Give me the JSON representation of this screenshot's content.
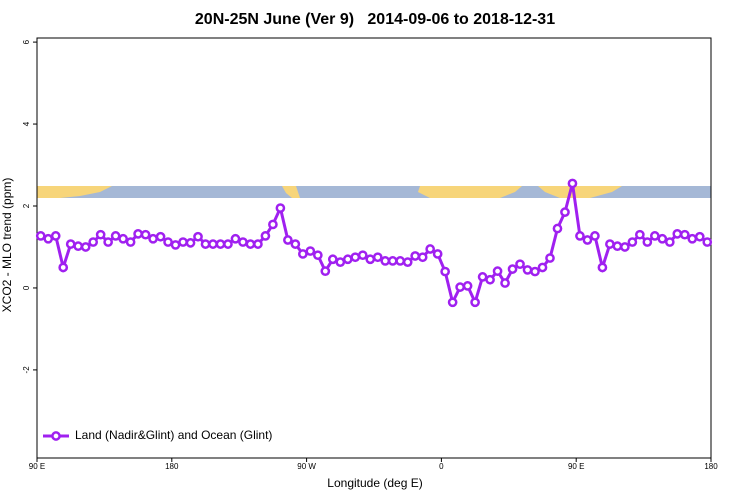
{
  "chart_data": {
    "type": "line",
    "title": "20N-25N June (Ver 9)   2014-09-06 to 2018-12-31",
    "x_label": "Longitude (deg E)",
    "y_label": "XCO2 - MLO trend (ppm)",
    "xlim": [
      90,
      540
    ],
    "ylim": [
      -4.15,
      6.1
    ],
    "xticks": [
      {
        "value": 90,
        "label": "90 E"
      },
      {
        "value": 180,
        "label": "180"
      },
      {
        "value": 270,
        "label": "90 W"
      },
      {
        "value": 360,
        "label": "0"
      },
      {
        "value": 450,
        "label": "90 E"
      },
      {
        "value": 540,
        "label": "180"
      }
    ],
    "yticks": [
      -2,
      0,
      2,
      4,
      6
    ],
    "legend": "bottom-left",
    "x": [
      92.5,
      97.5,
      102.5,
      107.5,
      112.5,
      117.5,
      122.5,
      127.5,
      132.5,
      137.5,
      142.5,
      147.5,
      152.5,
      157.5,
      162.5,
      167.5,
      172.5,
      177.5,
      182.5,
      187.5,
      192.5,
      197.5,
      202.5,
      207.5,
      212.5,
      217.5,
      222.5,
      227.5,
      232.5,
      237.5,
      242.5,
      247.5,
      252.5,
      257.5,
      262.5,
      267.5,
      272.5,
      277.5,
      282.5,
      287.5,
      292.5,
      297.5,
      302.5,
      307.5,
      312.5,
      317.5,
      322.5,
      327.5,
      332.5,
      337.5,
      342.5,
      347.5,
      352.5,
      357.5,
      362.5,
      367.5,
      372.5,
      377.5,
      382.5,
      387.5,
      392.5,
      397.5,
      402.5,
      407.5,
      412.5,
      417.5,
      422.5,
      427.5,
      432.5,
      437.5,
      442.5,
      447.5,
      452.5,
      457.5,
      462.5,
      467.5,
      472.5,
      477.5,
      482.5,
      487.5,
      492.5,
      497.5,
      502.5,
      507.5,
      512.5,
      517.5,
      522.5,
      527.5,
      532.5,
      537.5
    ],
    "series": [
      {
        "name": "Land (Nadir&Glint) and Ocean (Glint)",
        "color": "#a020f0",
        "values": [
          1.27,
          1.2,
          1.27,
          0.5,
          1.07,
          1.02,
          1.0,
          1.12,
          1.3,
          1.12,
          1.27,
          1.2,
          1.12,
          1.32,
          1.3,
          1.2,
          1.25,
          1.12,
          1.05,
          1.12,
          1.1,
          1.25,
          1.07,
          1.07,
          1.07,
          1.07,
          1.2,
          1.12,
          1.07,
          1.07,
          1.27,
          1.55,
          1.95,
          1.17,
          1.07,
          0.83,
          0.9,
          0.8,
          0.41,
          0.7,
          0.63,
          0.7,
          0.75,
          0.8,
          0.7,
          0.75,
          0.66,
          0.66,
          0.66,
          0.63,
          0.78,
          0.75,
          0.95,
          0.83,
          0.4,
          -0.35,
          0.02,
          0.05,
          -0.35,
          0.27,
          0.2,
          0.41,
          0.12,
          0.46,
          0.58,
          0.44,
          0.4,
          0.5,
          0.73,
          1.45,
          1.85,
          2.55,
          1.27,
          1.17,
          1.27,
          0.5,
          1.07,
          1.02,
          1.0,
          1.12,
          1.3,
          1.12,
          1.27,
          1.2,
          1.12,
          1.32,
          1.3,
          1.2,
          1.25,
          1.12
        ]
      }
    ]
  }
}
